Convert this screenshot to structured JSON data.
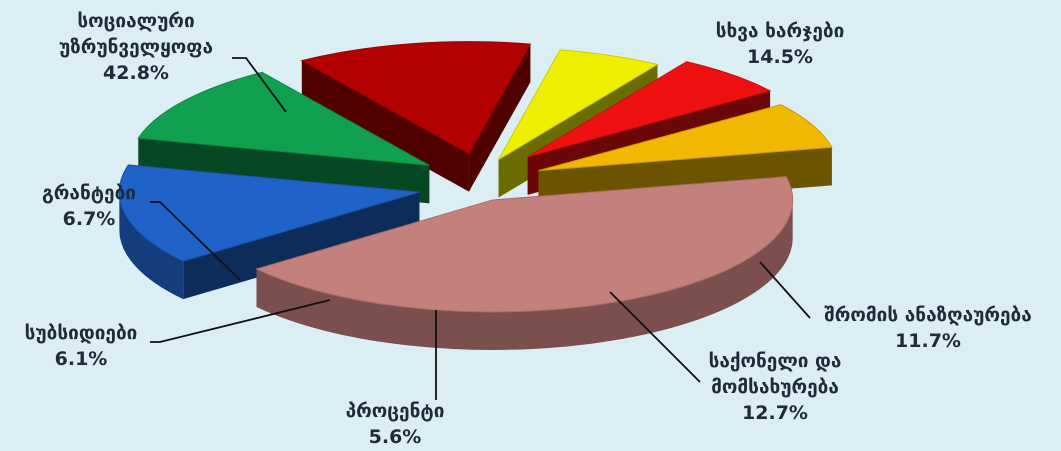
{
  "chart_data": {
    "type": "pie",
    "title": "",
    "slices": [
      {
        "label_lines": [
          "სოციალური",
          "უზრუნველყოფა"
        ],
        "value": 42.8,
        "value_label": "42.8%",
        "color": "#c4807c"
      },
      {
        "label_lines": [
          "სხვა ხარჯები"
        ],
        "value": 14.5,
        "value_label": "14.5%",
        "color": "#1f62c8"
      },
      {
        "label_lines": [
          "შრომის ანაზღაურება"
        ],
        "value": 11.7,
        "value_label": "11.7%",
        "color": "#10a050"
      },
      {
        "label_lines": [
          "საქონელი და",
          "მომსახურება"
        ],
        "value": 12.7,
        "value_label": "12.7%",
        "color": "#b30000"
      },
      {
        "label_lines": [
          "პროცენტი"
        ],
        "value": 5.6,
        "value_label": "5.6%",
        "color": "#eef000"
      },
      {
        "label_lines": [
          "სუბსიდიები"
        ],
        "value": 6.1,
        "value_label": "6.1%",
        "color": "#ee1010"
      },
      {
        "label_lines": [
          "გრანტები"
        ],
        "value": 6.7,
        "value_label": "6.7%",
        "color": "#f0b800"
      }
    ],
    "legend": "none",
    "grid": false
  }
}
